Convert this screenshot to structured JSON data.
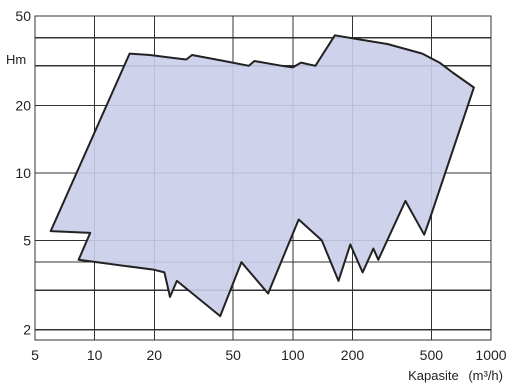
{
  "chart_data": {
    "type": "area",
    "title": "",
    "xlabel": "Kapasite",
    "xlabel_unit": "(m³/h)",
    "ylabel": "Hm",
    "xscale": "log",
    "yscale": "log",
    "xlim": [
      5,
      1000
    ],
    "ylim": [
      1.8,
      50
    ],
    "grid": true,
    "x_ticks": [
      5,
      10,
      20,
      50,
      100,
      200,
      500,
      1000
    ],
    "x_tick_labels": [
      "5",
      "10",
      "20",
      "50",
      "100",
      "200",
      "500",
      "1000"
    ],
    "y_ticks": [
      2,
      5,
      10,
      20,
      50
    ],
    "y_tick_labels": [
      "2",
      "5",
      "10",
      "20",
      "50"
    ],
    "x_gridlines": [
      5,
      10,
      20,
      50,
      100,
      200,
      500,
      1000
    ],
    "y_gridlines": [
      2,
      3,
      4,
      5,
      10,
      20,
      30,
      40,
      50
    ],
    "fill_color": "#c9cde9",
    "outline_color": "#222222",
    "series": [
      {
        "outline": [
          [
            6.0,
            5.5
          ],
          [
            15.0,
            34.0
          ],
          [
            19.0,
            33.5
          ],
          [
            25.0,
            32.5
          ],
          [
            29.0,
            32.0
          ],
          [
            31.0,
            33.5
          ],
          [
            45.0,
            31.5
          ],
          [
            60.0,
            30.0
          ],
          [
            64.0,
            31.5
          ],
          [
            88.0,
            30.0
          ],
          [
            100.0,
            29.5
          ],
          [
            110.0,
            31.0
          ],
          [
            130.0,
            30.0
          ],
          [
            163.0,
            41.0
          ],
          [
            210.0,
            39.5
          ],
          [
            300.0,
            37.5
          ],
          [
            450.0,
            34.0
          ],
          [
            550.0,
            31.0
          ],
          [
            640.0,
            28.0
          ],
          [
            820.0,
            24.0
          ],
          [
            490.0,
            6.2
          ],
          [
            460.0,
            5.3
          ],
          [
            370.0,
            7.5
          ],
          [
            270.0,
            4.1
          ],
          [
            255.0,
            4.6
          ],
          [
            225.0,
            3.6
          ],
          [
            195.0,
            4.8
          ],
          [
            170.0,
            3.3
          ],
          [
            140.0,
            5.0
          ],
          [
            107.0,
            6.2
          ],
          [
            75.0,
            2.9
          ],
          [
            55.0,
            4.0
          ],
          [
            43.0,
            2.3
          ],
          [
            26.0,
            3.3
          ],
          [
            24.0,
            2.8
          ],
          [
            22.5,
            3.6
          ],
          [
            20.0,
            3.7
          ],
          [
            8.3,
            4.1
          ],
          [
            9.5,
            5.4
          ],
          [
            6.0,
            5.5
          ]
        ]
      }
    ]
  }
}
